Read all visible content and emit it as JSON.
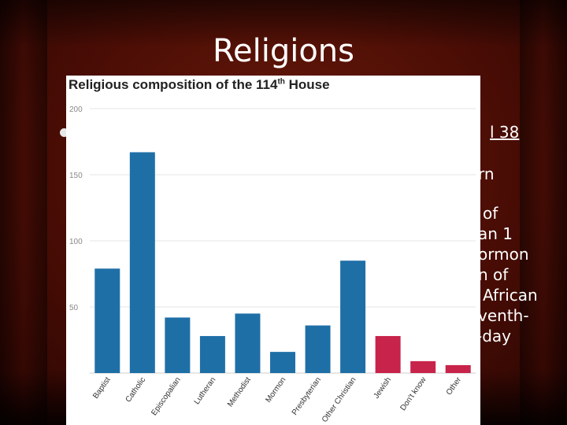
{
  "slide": {
    "title": "Religions",
    "fragments": [
      "l 38",
      "rn",
      "of",
      "an 1",
      "ormon",
      "n of",
      "African",
      "venth-",
      "-day"
    ]
  },
  "colors": {
    "christian": "#1f6fa7",
    "other": "#c8234a",
    "grid": "#e6e6e6",
    "axis_text": "#888888"
  },
  "chart_data": {
    "type": "bar",
    "title": "Religious composition of the 114",
    "title_sup": "th",
    "title_end": " House",
    "categories": [
      "Baptist",
      "Catholic",
      "Episcopalian",
      "Lutheran",
      "Methodist",
      "Mormon",
      "Presbyterian",
      "Other Christian",
      "Jewish",
      "Don't know",
      "Other"
    ],
    "values": [
      79,
      167,
      42,
      28,
      45,
      16,
      36,
      85,
      28,
      9,
      6
    ],
    "groups": [
      "christian",
      "christian",
      "christian",
      "christian",
      "christian",
      "christian",
      "christian",
      "christian",
      "other",
      "other",
      "other"
    ],
    "yticks": [
      50,
      100,
      150,
      200
    ],
    "ylim": [
      0,
      200
    ],
    "grid": true,
    "xlabel": "",
    "ylabel": ""
  }
}
